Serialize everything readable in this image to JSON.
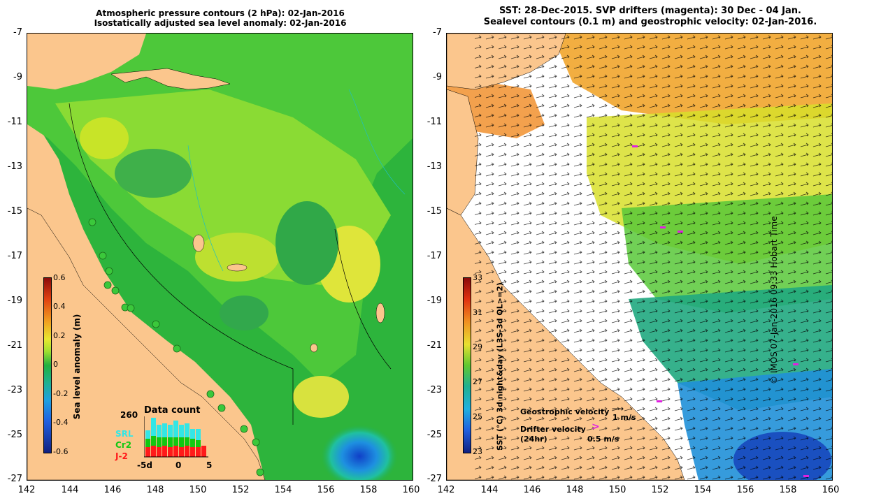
{
  "left_panel": {
    "title_line1": "Atmospheric pressure contours (2 hPa): 02-Jan-2016",
    "title_line2": "Isostatically adjusted sea level anomaly: 02-Jan-2016",
    "y_ticks": [
      "-7",
      "-9",
      "-11",
      "-13",
      "-15",
      "-17",
      "-19",
      "-21",
      "-23",
      "-25",
      "-27"
    ],
    "x_ticks": [
      "142",
      "144",
      "146",
      "148",
      "150",
      "152",
      "154",
      "156",
      "158",
      "160"
    ],
    "colorbar": {
      "label": "Sea level anomaly (m)",
      "ticks": [
        "0.6",
        "0.4",
        "0.2",
        "0",
        "-0.2",
        "-0.4",
        "-0.6"
      ]
    },
    "data_count": {
      "title": "Data count",
      "max_label": "260",
      "series": [
        {
          "name": "SRL",
          "color": "#33e6e6"
        },
        {
          "name": "Cr2",
          "color": "#11c811"
        },
        {
          "name": "J-2",
          "color": "#ff1a1a"
        }
      ],
      "x_ticks": [
        "-5d",
        "0",
        "5"
      ]
    }
  },
  "right_panel": {
    "title_line1": "SST: 28-Dec-2015. SVP drifters (magenta): 30 Dec - 04 Jan.",
    "title_line2": "Sealevel contours (0.1 m) and geostrophic velocity: 02-Jan-2016.",
    "y_ticks": [
      "-7",
      "-9",
      "-11",
      "-13",
      "-15",
      "-17",
      "-19",
      "-21",
      "-23",
      "-25",
      "-27"
    ],
    "x_ticks": [
      "142",
      "144",
      "146",
      "148",
      "150",
      "152",
      "154",
      "156",
      "158",
      "160"
    ],
    "colorbar": {
      "label": "SST (°C) 3d night&day (L3S-3d QL>=2)",
      "ticks": [
        "33",
        "31",
        "29",
        "27",
        "25",
        "23"
      ]
    },
    "legend": {
      "geo_label": "Geostrophic velocity",
      "geo_scale": "1 m/s",
      "drifter_label": "Drifter velocity",
      "drifter_sub": "(24hr)",
      "drifter_scale": "0.5 m/s"
    }
  },
  "credit": "© IMOS 07-Jan-2016 09:33 Hobart Time"
}
